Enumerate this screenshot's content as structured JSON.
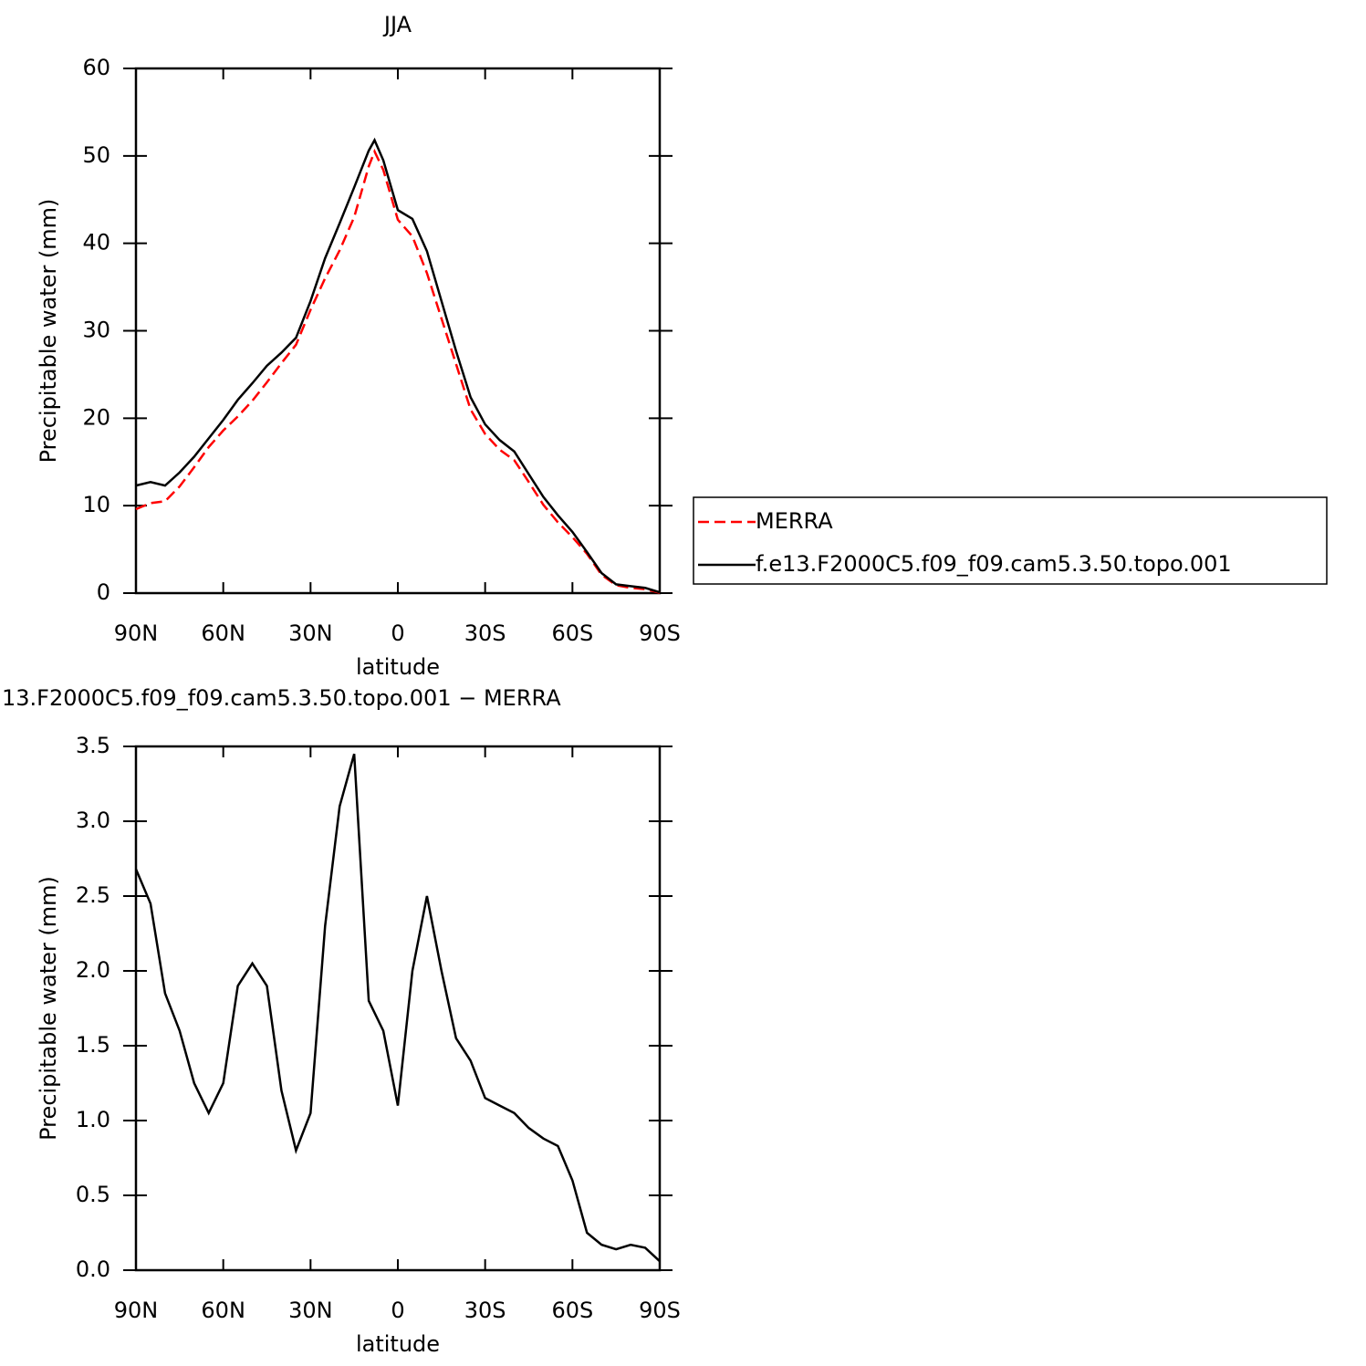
{
  "chart_data": [
    {
      "type": "line",
      "title": "JJA",
      "x_label": "latitude",
      "y_label": "Precipitable water (mm)",
      "x": [
        90,
        85,
        80,
        75,
        70,
        65,
        60,
        55,
        50,
        45,
        40,
        35,
        30,
        25,
        20,
        15,
        10,
        8,
        5,
        0,
        -5,
        -10,
        -15,
        -20,
        -25,
        -30,
        -35,
        -40,
        -45,
        -50,
        -55,
        -60,
        -65,
        -70,
        -75,
        -80,
        -85,
        -90
      ],
      "series": [
        {
          "name": "MERRA",
          "color": "#ff0000",
          "dashed": true,
          "values": [
            9.6,
            10.3,
            10.5,
            12.2,
            14.4,
            16.7,
            18.6,
            20.2,
            22.0,
            24.1,
            26.3,
            28.4,
            32.4,
            36.0,
            39.2,
            43.0,
            48.8,
            50.5,
            48.4,
            42.7,
            40.8,
            36.6,
            31.4,
            26.2,
            21.0,
            18.2,
            16.4,
            15.2,
            12.7,
            10.1,
            8.1,
            6.4,
            4.5,
            2.1,
            0.9,
            0.6,
            0.45,
            0.04
          ]
        },
        {
          "name": "f.e13.F2000C5.f09_f09.cam5.3.50.topo.001",
          "color": "#000000",
          "dashed": false,
          "values": [
            12.3,
            12.7,
            12.3,
            13.8,
            15.6,
            17.7,
            19.8,
            22.1,
            24.0,
            26.0,
            27.5,
            29.2,
            33.4,
            38.3,
            42.3,
            46.4,
            50.6,
            51.8,
            49.5,
            43.8,
            42.8,
            39.1,
            33.4,
            27.7,
            22.4,
            19.3,
            17.5,
            16.2,
            13.6,
            11.0,
            8.9,
            7.0,
            4.7,
            2.3,
            1.0,
            0.8,
            0.6,
            0.1
          ]
        }
      ],
      "xlim": [
        90,
        -90
      ],
      "xticks": [
        {
          "value": 90,
          "label": "90N"
        },
        {
          "value": 60,
          "label": "60N"
        },
        {
          "value": 30,
          "label": "30N"
        },
        0,
        {
          "value": -30,
          "label": "30S"
        },
        {
          "value": -60,
          "label": "60S"
        },
        {
          "value": -90,
          "label": "90S"
        }
      ],
      "ylim": [
        0,
        60
      ],
      "yticks": [
        0,
        10,
        20,
        30,
        40,
        50,
        60
      ],
      "legend": "right"
    },
    {
      "type": "line",
      "title": "13.F2000C5.f09_f09.cam5.3.50.topo.001 − MERRA",
      "x_label": "latitude",
      "y_label": "Precipitable water (mm)",
      "x": [
        90,
        85,
        80,
        75,
        70,
        65,
        60,
        55,
        50,
        45,
        40,
        35,
        30,
        25,
        20,
        15,
        10,
        5,
        0,
        -5,
        -10,
        -15,
        -20,
        -25,
        -30,
        -35,
        -40,
        -45,
        -50,
        -55,
        -60,
        -65,
        -70,
        -75,
        -80,
        -85,
        -90
      ],
      "values": [
        2.68,
        2.45,
        1.85,
        1.6,
        1.25,
        1.05,
        1.25,
        1.9,
        2.05,
        1.9,
        1.2,
        0.8,
        1.05,
        2.3,
        3.1,
        3.45,
        1.8,
        1.6,
        1.1,
        2.0,
        2.5,
        2.0,
        1.55,
        1.4,
        1.15,
        1.1,
        1.05,
        0.95,
        0.88,
        0.83,
        0.6,
        0.25,
        0.17,
        0.14,
        0.17,
        0.15,
        0.06
      ],
      "color": "#000000",
      "xlim": [
        90,
        -90
      ],
      "xticks": [
        {
          "value": 90,
          "label": "90N"
        },
        {
          "value": 60,
          "label": "60N"
        },
        {
          "value": 30,
          "label": "30N"
        },
        0,
        {
          "value": -30,
          "label": "30S"
        },
        {
          "value": -60,
          "label": "60S"
        },
        {
          "value": -90,
          "label": "90S"
        }
      ],
      "ylim": [
        0,
        3.5
      ],
      "yticks": [
        {
          "value": 0,
          "label": "0.0"
        },
        {
          "value": 0.5,
          "label": "0.5"
        },
        {
          "value": 1,
          "label": "1.0"
        },
        {
          "value": 1.5,
          "label": "1.5"
        },
        {
          "value": 2,
          "label": "2.0"
        },
        {
          "value": 2.5,
          "label": "2.5"
        },
        {
          "value": 3,
          "label": "3.0"
        },
        {
          "value": 3.5,
          "label": "3.5"
        }
      ]
    }
  ]
}
